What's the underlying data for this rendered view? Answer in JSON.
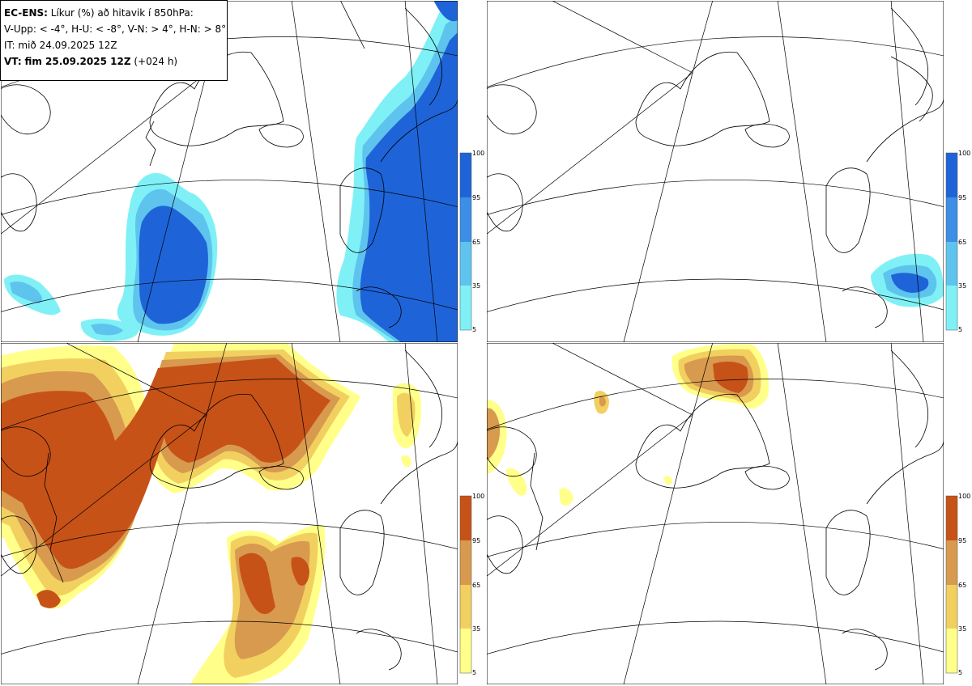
{
  "header": {
    "model": "EC-ENS:",
    "title": "Líkur (%) að hitavik í 850hPa:",
    "legend_def": "V-Upp: < -4°, H-U: < -8°, V-N: > 4°, H-N: > 8°",
    "init_time": "IT: mið 24.09.2025 12Z",
    "valid_label": "VT:",
    "valid_time": "fim 25.09.2025 12Z",
    "lead": "(+024 h)"
  },
  "colorbar_blue": {
    "ticks": [
      "100",
      "95",
      "65",
      "35",
      "5"
    ],
    "colors": [
      "#1e64d8",
      "#3c8ee6",
      "#5ec4ee",
      "#7ff1f6"
    ]
  },
  "colorbar_orange": {
    "ticks": [
      "100",
      "95",
      "65",
      "35",
      "5"
    ],
    "colors": [
      "#c75218",
      "#d89a4e",
      "#f2d060",
      "#ffff8a"
    ]
  },
  "panels": [
    {
      "name": "V-Upp",
      "threshold": "< -4°",
      "scheme": "blue"
    },
    {
      "name": "H-U",
      "threshold": "< -8°",
      "scheme": "blue"
    },
    {
      "name": "V-N",
      "threshold": "> 4°",
      "scheme": "orange"
    },
    {
      "name": "H-N",
      "threshold": "> 8°",
      "scheme": "orange"
    }
  ]
}
